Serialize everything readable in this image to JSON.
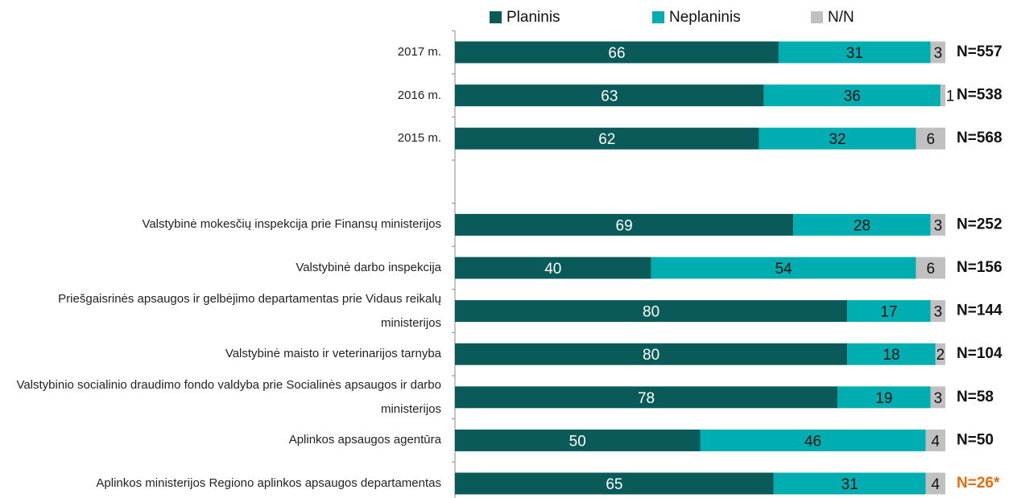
{
  "chart_data": {
    "type": "stacked_bar_horizontal",
    "categories": [
      "2017 m.",
      "2016 m.",
      "2015 m.",
      null,
      "Valstybinė mokesčių inspekcija prie Finansų ministerijos",
      "Valstybinė darbo inspekcija",
      "Priešgaisrinės apsaugos ir gelbėjimo departamentas prie Vidaus reikalų ministerijos",
      "Valstybinė maisto ir veterinarijos tarnyba",
      "Valstybinio socialinio draudimo fondo valdyba prie Socialinės apsaugos ir darbo ministerijos",
      "Aplinkos apsaugos agentūra",
      "Aplinkos ministerijos Regiono aplinkos apsaugos departamentas"
    ],
    "series": [
      {
        "name": "Planinis",
        "color": "#0b5a5a",
        "values": [
          66,
          63,
          62,
          null,
          69,
          40,
          80,
          80,
          78,
          50,
          65
        ]
      },
      {
        "name": "Neplaninis",
        "color": "#00adb0",
        "values": [
          31,
          36,
          32,
          null,
          28,
          54,
          17,
          18,
          19,
          46,
          31
        ]
      },
      {
        "name": "N/N",
        "color": "#c0c0c0",
        "values": [
          3,
          1,
          6,
          null,
          3,
          6,
          3,
          2,
          3,
          4,
          4
        ]
      }
    ],
    "sample_sizes": [
      "N=557",
      "N=538",
      "N=568",
      null,
      "N=252",
      "N=156",
      "N=144",
      "N=104",
      "N=58",
      "N=50",
      "N=26*"
    ],
    "highlight_sample_color": "#e46c0a",
    "highlight_sample_index": 10,
    "xlim": [
      0,
      100
    ]
  }
}
